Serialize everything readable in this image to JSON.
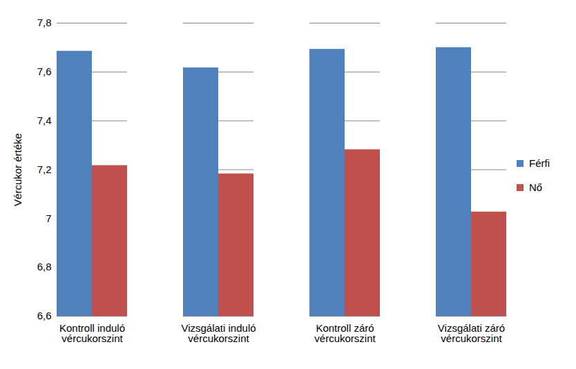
{
  "chart_data": {
    "type": "bar",
    "categories": [
      "Kontroll induló vércukorszint",
      "Vizsgálati induló vércukorszint",
      "Kontroll záró vércukorszint",
      "Vizsgálati záró vércukorszint"
    ],
    "series": [
      {
        "name": "Férfi",
        "color": "#4f81bd",
        "values": [
          7.685,
          7.617,
          7.693,
          7.7
        ]
      },
      {
        "name": "Nő",
        "color": "#c0504d",
        "values": [
          7.217,
          7.183,
          7.282,
          7.027
        ]
      }
    ],
    "y_label": "Vércukor értéke",
    "ylim": [
      6.6,
      7.8
    ],
    "yticks": [
      {
        "value": 6.6,
        "label": "6,6"
      },
      {
        "value": 6.8,
        "label": "6,8"
      },
      7,
      {
        "value": 7.2,
        "label": "7,2"
      },
      {
        "value": 7.4,
        "label": "7,4"
      },
      {
        "value": 7.6,
        "label": "7,6"
      },
      {
        "value": 7.8,
        "label": "7,8"
      }
    ],
    "grid": true,
    "legend": "right"
  }
}
